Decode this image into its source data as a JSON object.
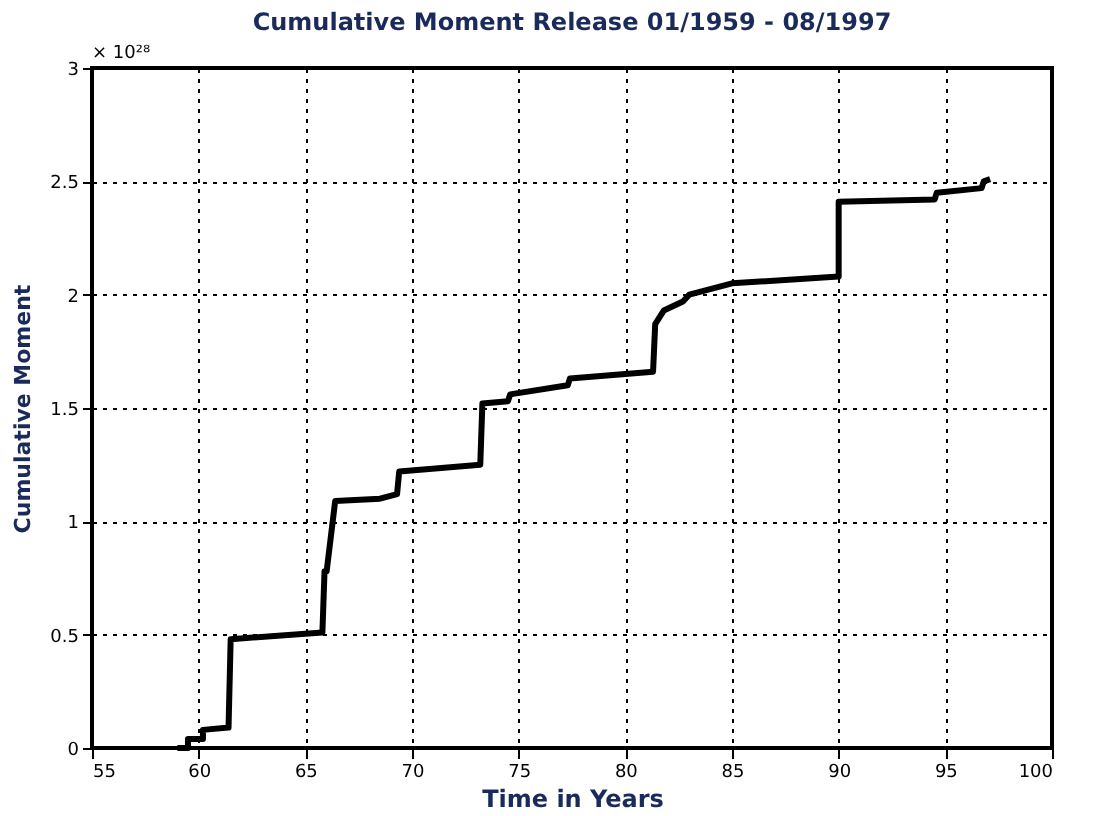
{
  "chart_data": {
    "type": "line",
    "title": "Cumulative Moment Release 01/1959 - 08/1997",
    "xlabel": "Time in Years",
    "ylabel": "Cumulative Moment",
    "annotations": [
      "× 10²⁸"
    ],
    "x": [
      59.0,
      59.5,
      59.5,
      60.2,
      60.2,
      61.4,
      61.5,
      65.8,
      65.9,
      66.0,
      66.4,
      68.5,
      69.3,
      69.4,
      73.2,
      73.3,
      74.5,
      74.6,
      77.3,
      77.4,
      81.3,
      81.4,
      81.8,
      82.7,
      83.0,
      85.0,
      90.0,
      90.0,
      94.5,
      94.6,
      96.7,
      96.8,
      97.1
    ],
    "series": [
      {
        "color": "#000000",
        "values": [
          0.0,
          0.0,
          0.04,
          0.04,
          0.08,
          0.09,
          0.48,
          0.51,
          0.78,
          0.78,
          1.09,
          1.1,
          1.12,
          1.22,
          1.25,
          1.52,
          1.53,
          1.56,
          1.6,
          1.63,
          1.66,
          1.87,
          1.93,
          1.97,
          2.0,
          2.05,
          2.08,
          2.41,
          2.42,
          2.45,
          2.47,
          2.5,
          2.51
        ]
      }
    ],
    "xlim": [
      55,
      100
    ],
    "xticks": [
      55,
      60,
      65,
      70,
      75,
      80,
      85,
      90,
      95,
      100
    ],
    "ylim": [
      0,
      3
    ],
    "yticks": [
      0,
      0.5,
      1,
      1.5,
      2,
      2.5,
      3
    ],
    "grid": true,
    "line_style": "solid",
    "marker": "none"
  }
}
